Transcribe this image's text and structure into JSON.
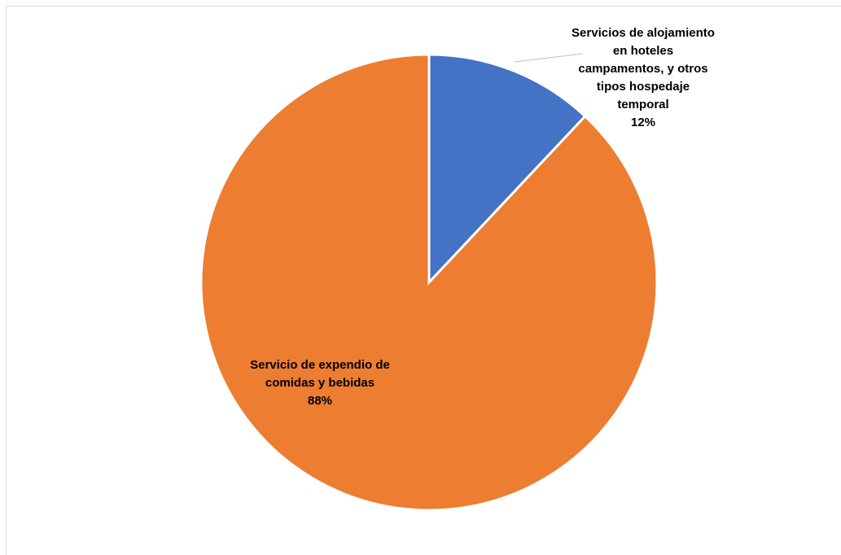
{
  "chart_data": {
    "type": "pie",
    "categories": [
      "Servicios de alojamiento en hoteles campamentos, y otros tipos hospedaje temporal",
      "Servicio de expendio de comidas y bebidas"
    ],
    "values": [
      12,
      88
    ],
    "value_labels": [
      "12%",
      "88%"
    ],
    "colors": [
      "#4472c4",
      "#ed7d31"
    ]
  }
}
